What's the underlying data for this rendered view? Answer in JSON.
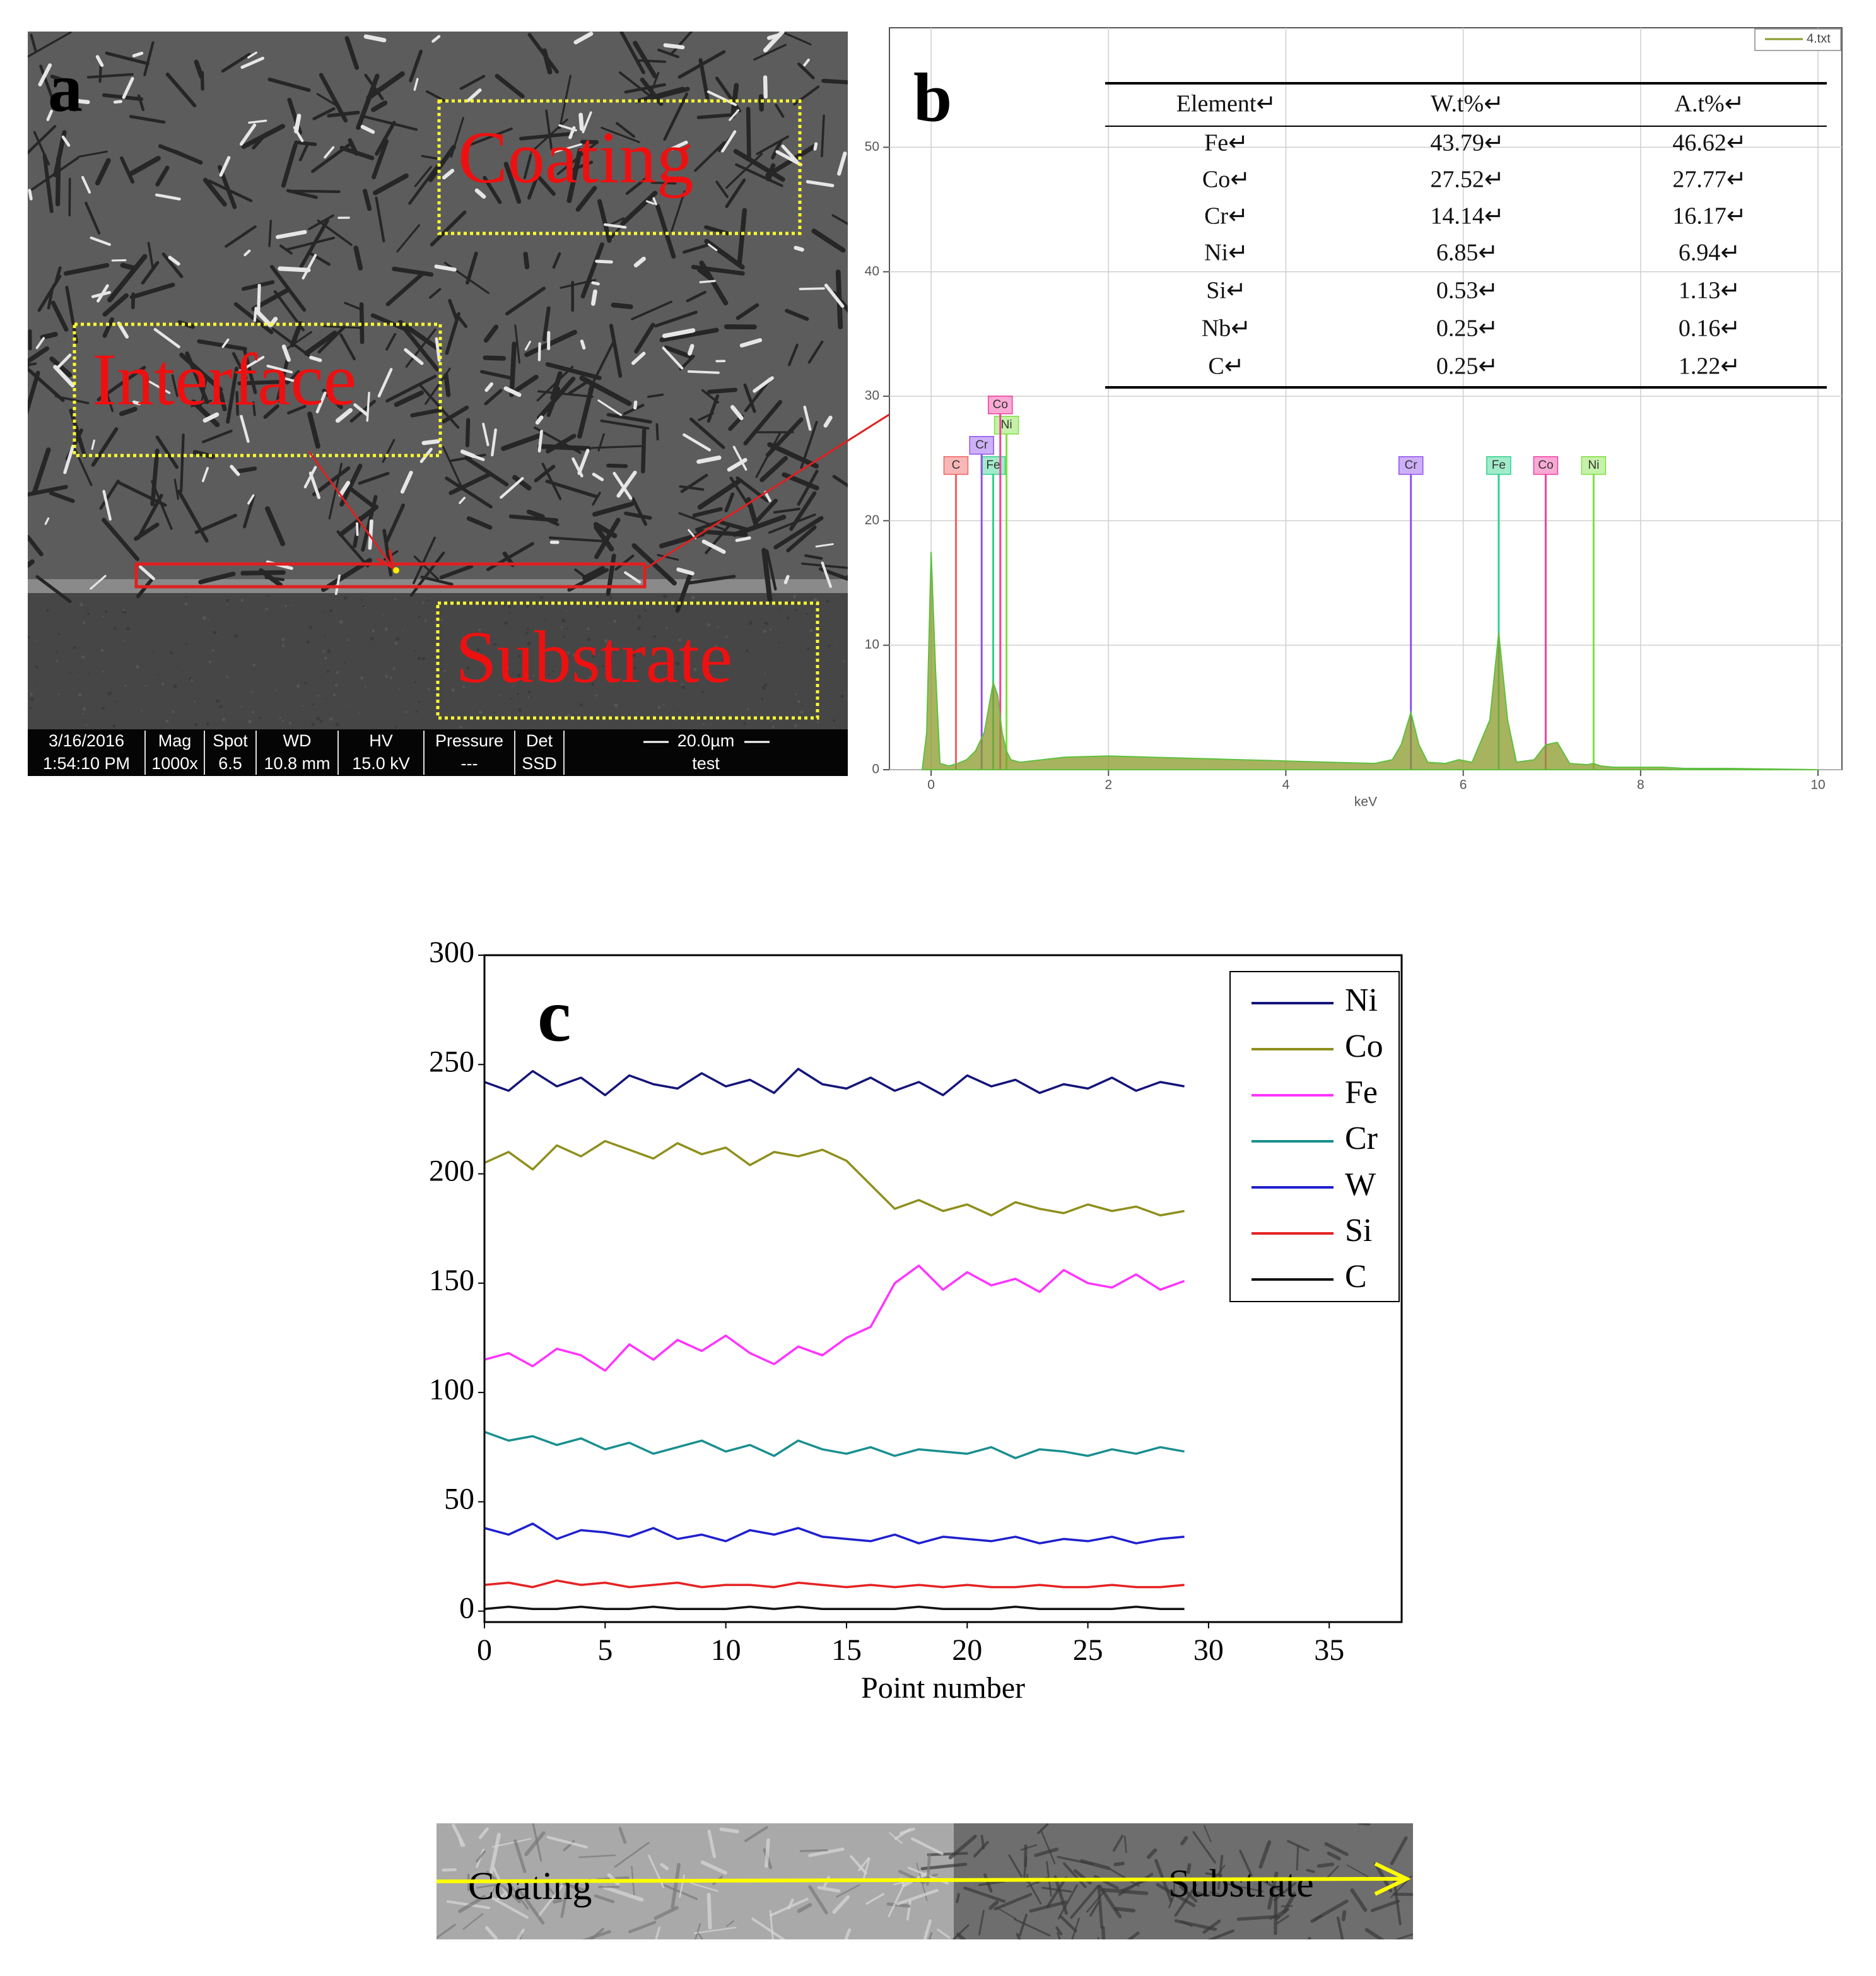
{
  "panel_a": {
    "label": "a",
    "regions": [
      "Coating",
      "Interface",
      "Substrate"
    ],
    "info_bar": [
      [
        "3/16/2016",
        "1:54:10 PM"
      ],
      [
        "Mag",
        "1000x"
      ],
      [
        "Spot",
        "6.5"
      ],
      [
        "WD",
        "10.8 mm"
      ],
      [
        "HV",
        "15.0 kV"
      ],
      [
        "Pressure",
        "---"
      ],
      [
        "Det",
        "SSD"
      ],
      [
        "20.0µm",
        "test"
      ]
    ]
  },
  "eds_table": {
    "columns": [
      "Element↵",
      "W.t%↵",
      "A.t%↵"
    ],
    "rows": [
      [
        "Fe↵",
        "43.79↵",
        "46.62↵"
      ],
      [
        "Co↵",
        "27.52↵",
        "27.77↵"
      ],
      [
        "Cr↵",
        "14.14↵",
        "16.17↵"
      ],
      [
        "Ni↵",
        "6.85↵",
        "6.94↵"
      ],
      [
        "Si↵",
        "0.53↵",
        "1.13↵"
      ],
      [
        "Nb↵",
        "0.25↵",
        "0.16↵"
      ],
      [
        "C↵",
        "0.25↵",
        "1.22↵"
      ]
    ]
  },
  "chart_data": [
    {
      "type": "area",
      "panel_label": "b",
      "x_label": "keV",
      "x": [
        -0.1,
        -0.05,
        0,
        0.05,
        0.1,
        0.2,
        0.3,
        0.4,
        0.5,
        0.6,
        0.65,
        0.7,
        0.75,
        0.8,
        0.85,
        0.9,
        1.0,
        1.5,
        2,
        2.5,
        3,
        3.5,
        4,
        4.5,
        5,
        5.2,
        5.3,
        5.41,
        5.5,
        5.6,
        5.8,
        5.95,
        6.1,
        6.3,
        6.4,
        6.5,
        6.6,
        6.8,
        6.93,
        7.06,
        7.2,
        7.4,
        7.47,
        7.55,
        7.7,
        8,
        8.26,
        8.5,
        9,
        10
      ],
      "series": [
        {
          "name": "4.txt",
          "color": "#8a9a2a",
          "values": [
            0,
            3,
            17.5,
            8,
            0.5,
            0.3,
            0.5,
            0.8,
            1.5,
            3,
            5,
            7,
            6,
            3,
            1.5,
            0.8,
            0.6,
            1,
            1.1,
            1,
            0.9,
            0.8,
            0.7,
            0.6,
            0.5,
            0.8,
            2,
            4.6,
            2,
            0.6,
            0.5,
            0.8,
            0.6,
            4,
            11,
            4,
            0.6,
            0.8,
            2,
            2.2,
            0.5,
            0.4,
            0.5,
            0.3,
            0.2,
            0.2,
            0.2,
            0.1,
            0.1,
            0
          ]
        }
      ],
      "markers": [
        {
          "label": "C",
          "x": 0.28,
          "color": "#f06060"
        },
        {
          "label": "Fe",
          "x": 0.7,
          "color": "#2fd28c"
        },
        {
          "label": "Cr",
          "x": 0.57,
          "color": "#9050f0"
        },
        {
          "label": "Ni",
          "x": 0.85,
          "color": "#7ee040"
        },
        {
          "label": "Co",
          "x": 0.78,
          "color": "#f040a0"
        },
        {
          "label": "Cr",
          "x": 5.41,
          "color": "#9050f0"
        },
        {
          "label": "Fe",
          "x": 6.4,
          "color": "#2fd28c"
        },
        {
          "label": "Co",
          "x": 6.93,
          "color": "#f040a0"
        },
        {
          "label": "Ni",
          "x": 7.47,
          "color": "#7ee040"
        }
      ],
      "xlim": [
        -0.47,
        10.27
      ],
      "ylim": [
        0,
        59.6
      ],
      "xticks": [
        0,
        2,
        4,
        6,
        8,
        10
      ],
      "yticks": [
        0,
        10,
        20,
        30,
        40,
        50
      ],
      "grid": true,
      "legend": "upper right"
    },
    {
      "type": "line",
      "panel_label": "c",
      "x_label": "Point number",
      "x": [
        0,
        1,
        2,
        3,
        4,
        5,
        6,
        7,
        8,
        9,
        10,
        11,
        12,
        13,
        14,
        15,
        16,
        17,
        18,
        19,
        20,
        21,
        22,
        23,
        24,
        25,
        26,
        27,
        28,
        29
      ],
      "series": [
        {
          "name": "Ni",
          "color": "#14147a",
          "values": [
            242,
            238,
            247,
            240,
            244,
            236,
            245,
            241,
            239,
            246,
            240,
            243,
            237,
            248,
            241,
            239,
            244,
            238,
            242,
            236,
            245,
            240,
            243,
            237,
            241,
            239,
            244,
            238,
            242,
            240
          ]
        },
        {
          "name": "Co",
          "color": "#8f8f1e",
          "values": [
            205,
            210,
            202,
            213,
            208,
            215,
            211,
            207,
            214,
            209,
            212,
            204,
            210,
            208,
            211,
            206,
            195,
            184,
            188,
            183,
            186,
            181,
            187,
            184,
            182,
            186,
            183,
            185,
            181,
            183
          ]
        },
        {
          "name": "Fe",
          "color": "#ff33ff",
          "values": [
            115,
            118,
            112,
            120,
            117,
            110,
            122,
            115,
            124,
            119,
            126,
            118,
            113,
            121,
            117,
            125,
            130,
            150,
            158,
            147,
            155,
            149,
            152,
            146,
            156,
            150,
            148,
            154,
            147,
            151
          ]
        },
        {
          "name": "Cr",
          "color": "#1a8f8f",
          "values": [
            82,
            78,
            80,
            76,
            79,
            74,
            77,
            72,
            75,
            78,
            73,
            76,
            71,
            78,
            74,
            72,
            75,
            71,
            74,
            73,
            72,
            75,
            70,
            74,
            73,
            71,
            74,
            72,
            75,
            73
          ]
        },
        {
          "name": "W",
          "color": "#1f1fcf",
          "values": [
            38,
            35,
            40,
            33,
            37,
            36,
            34,
            38,
            33,
            35,
            32,
            37,
            35,
            38,
            34,
            33,
            32,
            35,
            31,
            34,
            33,
            32,
            34,
            31,
            33,
            32,
            34,
            31,
            33,
            34
          ]
        },
        {
          "name": "Si",
          "color": "#e52222",
          "values": [
            12,
            13,
            11,
            14,
            12,
            13,
            11,
            12,
            13,
            11,
            12,
            12,
            11,
            13,
            12,
            11,
            12,
            11,
            12,
            11,
            12,
            11,
            11,
            12,
            11,
            11,
            12,
            11,
            11,
            12
          ]
        },
        {
          "name": "C",
          "color": "#111111",
          "values": [
            1,
            2,
            1,
            1,
            2,
            1,
            1,
            2,
            1,
            1,
            1,
            2,
            1,
            2,
            1,
            1,
            1,
            1,
            2,
            1,
            1,
            1,
            2,
            1,
            1,
            1,
            1,
            2,
            1,
            1
          ]
        }
      ],
      "xlim": [
        0,
        38
      ],
      "ylim": [
        -5,
        300
      ],
      "xticks": [
        0,
        5,
        10,
        15,
        20,
        25,
        30,
        35
      ],
      "yticks": [
        0,
        50,
        100,
        150,
        200,
        250,
        300
      ],
      "grid": false,
      "legend": "upper right"
    }
  ],
  "strip": {
    "labels": [
      "Coating",
      "Substrate"
    ]
  }
}
